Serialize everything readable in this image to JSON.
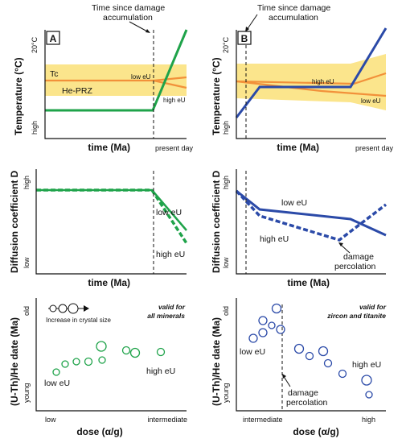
{
  "annotations": {
    "left_top": [
      "Time since damage",
      "accumulation"
    ],
    "right_top": [
      "Time since damage",
      "accumulation"
    ]
  },
  "panel_labels": {
    "a": "A",
    "b": "B"
  },
  "temperature": {
    "ylabel": "Temperature (°C)",
    "ytick_top": "20°C",
    "ytick_bottom": "high",
    "xlabel": "time (Ma)",
    "present": "present day",
    "tc": "Tc",
    "prz": "He-PRZ",
    "left_low": "low eU",
    "left_high": "high eU",
    "right_high": "high eU",
    "right_low": "low eU"
  },
  "diffusion": {
    "ylabel": "Diffusion coefficient D",
    "ytick_top": "high",
    "ytick_bottom": "low",
    "xlabel": "time (Ma)",
    "left_low": "low eU",
    "left_high": "high eU",
    "right_low": "low eU",
    "right_high": "high eU",
    "percolation": [
      "damage",
      "percolation"
    ]
  },
  "dates": {
    "ylabel": "(U-Th)/He date (Ma)",
    "ytick_top": "old",
    "ytick_bottom": "young",
    "xlabel": "dose (α/g)",
    "left_xmin": "low",
    "left_xmax": "intermediate",
    "right_xmin": "intermediate",
    "right_xmax": "high",
    "crystal_legend": "Increase in crystal size",
    "valid_left": [
      "valid for",
      "all minerals"
    ],
    "valid_right": [
      "valid for",
      "zircon and titanite"
    ],
    "left_low": "low eU",
    "left_high": "high eU",
    "right_low": "low eU",
    "right_high": "high eU",
    "percolation": [
      "damage",
      "percolation"
    ]
  },
  "colors": {
    "green": "#1fa34a",
    "blue": "#2b4aa8",
    "orange": "#f2913a",
    "band": "#fbe58c"
  }
}
